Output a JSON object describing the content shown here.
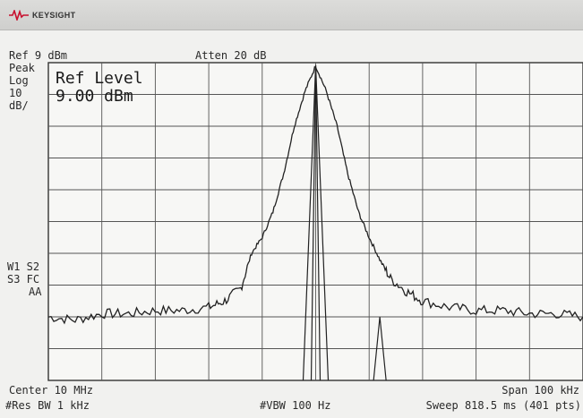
{
  "brand": {
    "name": "KEYSIGHT",
    "logo_icon": "keysight-wave-icon"
  },
  "header": {
    "ref": "Ref 9 dBm",
    "atten": "Atten 20 dB"
  },
  "left_panel": {
    "detector": "Peak",
    "scale_type": "Log",
    "scale_value": "10",
    "scale_unit": "dB/",
    "trace_line1": "W1 S2",
    "trace_line2": "S3 FC",
    "trace_line3": "AA"
  },
  "active_function": {
    "label": "Ref Level",
    "value": "9.00 dBm"
  },
  "footer": {
    "center": "Center 10 MHz",
    "span": "Span 100 kHz",
    "rbw": "#Res BW 1 kHz",
    "vbw": "#VBW 100 Hz",
    "sweep": "Sweep 818.5 ms (401 pts)"
  },
  "chart_data": {
    "type": "line",
    "x_unit": "MHz",
    "xlim": [
      9.95,
      10.05
    ],
    "ylim": [
      -91,
      9
    ],
    "y_unit": "dBm",
    "grid": true,
    "series": [
      {
        "x": [
          9.95,
          9.955,
          9.96,
          9.965,
          9.97,
          9.975,
          9.98,
          9.983,
          9.986,
          9.988,
          9.99,
          9.992,
          9.994,
          9.996,
          9.998,
          10.0,
          10.002,
          10.004,
          10.006,
          10.008,
          10.01,
          10.012,
          10.014,
          10.017,
          10.02,
          10.025,
          10.03,
          10.035,
          10.04,
          10.045,
          10.05
        ],
        "y": [
          -71,
          -72,
          -70,
          -70,
          -69,
          -69,
          -68,
          -66,
          -62,
          -51,
          -46,
          -38,
          -26,
          -11,
          0,
          8,
          0,
          -11,
          -26,
          -38,
          -46,
          -53,
          -59,
          -63,
          -66,
          -68,
          -69,
          -69,
          -70,
          -70,
          -71
        ]
      }
    ]
  }
}
